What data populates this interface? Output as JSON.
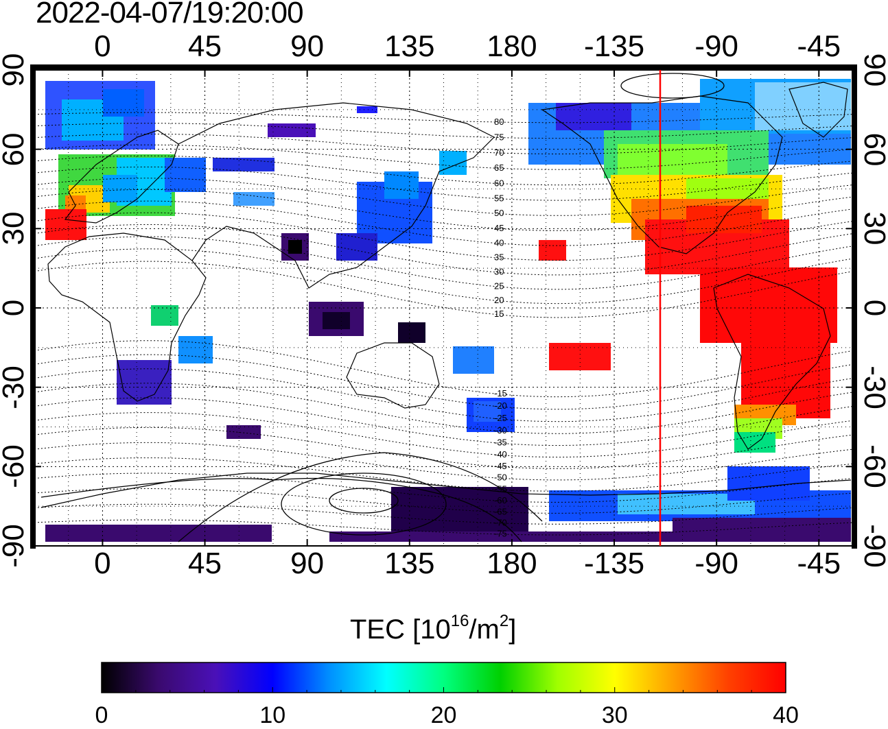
{
  "timestamp": "2022-04-07/19:20:00",
  "map": {
    "type": "global TEC map",
    "lon_ticks_top": [
      "0",
      "45",
      "90",
      "135",
      "180",
      "-135",
      "-90",
      "-45"
    ],
    "lon_ticks_bottom": [
      "0",
      "45",
      "90",
      "135",
      "180",
      "-135",
      "-90",
      "-45"
    ],
    "lat_ticks_left": [
      "90",
      "60",
      "30",
      "0",
      "-30",
      "-60",
      "-90"
    ],
    "lat_ticks_right": [
      "90",
      "60",
      "30",
      "0",
      "-30",
      "-60",
      "-90"
    ],
    "magnetic_latitude_labels_north": [
      "80",
      "75",
      "70",
      "65",
      "60",
      "55",
      "50",
      "45",
      "40",
      "35",
      "30",
      "25",
      "20",
      "15"
    ],
    "magnetic_latitude_labels_south": [
      "-15",
      "-20",
      "-25",
      "-30",
      "-35",
      "-40",
      "-45",
      "-50",
      "-55",
      "-60",
      "-65",
      "-70",
      "-75"
    ],
    "terminator_color": "#ff0000",
    "grid": "dotted"
  },
  "colorbar": {
    "title": "TEC  [10",
    "title_sup1": "16",
    "title_mid": "/m",
    "title_sup2": "2",
    "title_end": "]",
    "min": 0,
    "max": 40,
    "ticks": [
      "0",
      "10",
      "20",
      "30",
      "40"
    ],
    "colors": [
      "#000000",
      "#3a0a6e",
      "#4a10b8",
      "#0000ff",
      "#0090ff",
      "#00ffff",
      "#00ff80",
      "#00d000",
      "#a0ff00",
      "#ffff00",
      "#ffa000",
      "#ff4000",
      "#ff0000"
    ]
  }
}
